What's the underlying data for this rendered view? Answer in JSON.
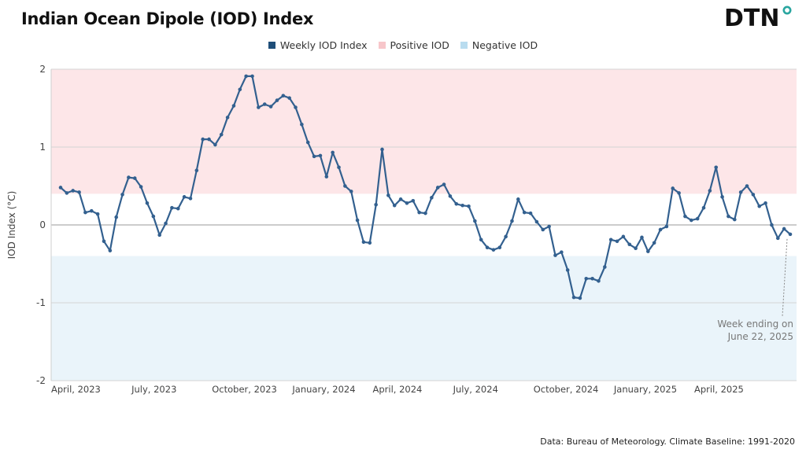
{
  "title": "Indian Ocean Dipole (IOD) Index",
  "logo_text": "DTN",
  "source": "Data: Bureau of Meteorology. Climate Baseline: 1991-2020",
  "colors": {
    "line": "#33608f",
    "positive_band": "#fde6e8",
    "negative_band": "#eaf4fa",
    "legend_weekly": "#1f4e79",
    "legend_positive": "#f7c6ca",
    "legend_negative": "#b9dcef",
    "logo_accent": "#2aa6a0"
  },
  "chart_data": {
    "type": "line",
    "ylabel": "IOD Index (°C)",
    "ylim": [
      -2,
      2
    ],
    "yticks": [
      "2",
      "1",
      "0",
      "-1",
      "-2"
    ],
    "xtick_labels": [
      "April, 2023",
      "July, 2023",
      "October, 2023",
      "January, 2024",
      "April, 2024",
      "July, 2024",
      "October, 2024",
      "January, 2025",
      "April, 2025"
    ],
    "thresholds": {
      "positive": 0.4,
      "negative": -0.4
    },
    "legend": [
      "Weekly IOD Index",
      "Positive IOD",
      "Negative IOD"
    ],
    "annotation": [
      "Week ending on",
      "June 22, 2025"
    ],
    "series": [
      {
        "name": "Weekly IOD Index",
        "values": [
          0.48,
          0.41,
          0.44,
          0.42,
          0.16,
          0.18,
          0.14,
          -0.21,
          -0.33,
          0.1,
          0.39,
          0.61,
          0.6,
          0.49,
          0.28,
          0.11,
          -0.13,
          0.02,
          0.22,
          0.21,
          0.36,
          0.34,
          0.7,
          1.1,
          1.1,
          1.03,
          1.16,
          1.38,
          1.53,
          1.74,
          1.91,
          1.91,
          1.51,
          1.55,
          1.52,
          1.6,
          1.66,
          1.63,
          1.51,
          1.29,
          1.06,
          0.88,
          0.89,
          0.62,
          0.93,
          0.74,
          0.5,
          0.43,
          0.06,
          -0.22,
          -0.23,
          0.26,
          0.97,
          0.38,
          0.25,
          0.33,
          0.28,
          0.31,
          0.16,
          0.15,
          0.35,
          0.48,
          0.52,
          0.37,
          0.27,
          0.25,
          0.24,
          0.05,
          -0.19,
          -0.29,
          -0.32,
          -0.29,
          -0.15,
          0.05,
          0.33,
          0.16,
          0.15,
          0.04,
          -0.06,
          -0.02,
          -0.39,
          -0.35,
          -0.58,
          -0.93,
          -0.94,
          -0.69,
          -0.69,
          -0.72,
          -0.54,
          -0.19,
          -0.21,
          -0.15,
          -0.25,
          -0.3,
          -0.16,
          -0.34,
          -0.23,
          -0.06,
          -0.02,
          0.47,
          0.41,
          0.11,
          0.06,
          0.08,
          0.22,
          0.44,
          0.74,
          0.36,
          0.11,
          0.07,
          0.42,
          0.5,
          0.39,
          0.24,
          0.28,
          0.0,
          -0.17,
          -0.05,
          -0.12
        ]
      }
    ]
  }
}
